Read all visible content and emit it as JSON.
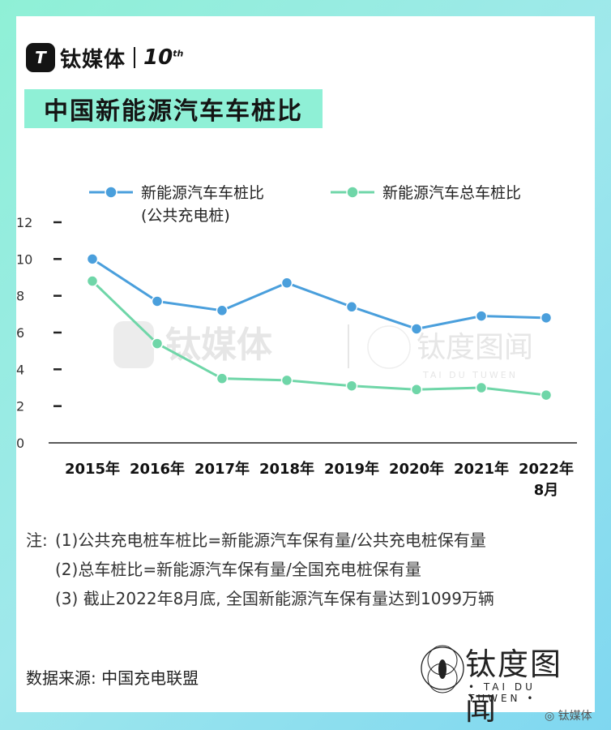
{
  "brand": {
    "logo_glyph": "T",
    "name": "钛媒体",
    "anniversary": "10",
    "anniversary_suffix": "th"
  },
  "title": "中国新能源汽车车桩比",
  "chart_data": {
    "type": "line",
    "categories": [
      "2015年",
      "2016年",
      "2017年",
      "2018年",
      "2019年",
      "2020年",
      "2021年",
      "2022年\n8月"
    ],
    "series": [
      {
        "name": "新能源汽车车桩比\n(公共充电桩)",
        "color": "#4a9fdc",
        "values": [
          10.0,
          7.7,
          7.2,
          8.7,
          7.4,
          6.2,
          6.9,
          6.8
        ]
      },
      {
        "name": "新能源汽车总车桩比",
        "color": "#6fd6a8",
        "values": [
          8.8,
          5.4,
          3.5,
          3.4,
          3.1,
          2.9,
          3.0,
          2.6
        ]
      }
    ],
    "yticks": [
      0,
      2,
      4,
      6,
      8,
      10,
      12
    ],
    "ylim": [
      0,
      12
    ],
    "legend_position": "top",
    "grid": false
  },
  "watermark": {
    "brand": "钛媒体",
    "tdtw_name": "钛度图闻",
    "tdtw_sub": "TAI DU TUWEN"
  },
  "notes": {
    "prefix": "注:",
    "items": [
      "(1)公共充电桩车桩比=新能源汽车保有量/公共充电桩保有量",
      "(2)总车桩比=新能源汽车保有量/全国充电桩保有量",
      "(3)  截止2022年8月底, 全国新能源汽车保有量达到1099万辆"
    ]
  },
  "source": "数据来源: 中国充电联盟",
  "tdtw": {
    "name": "钛度图闻",
    "sub": "• TAI DU TUWEN •"
  },
  "corner_mark": "钛媒体"
}
